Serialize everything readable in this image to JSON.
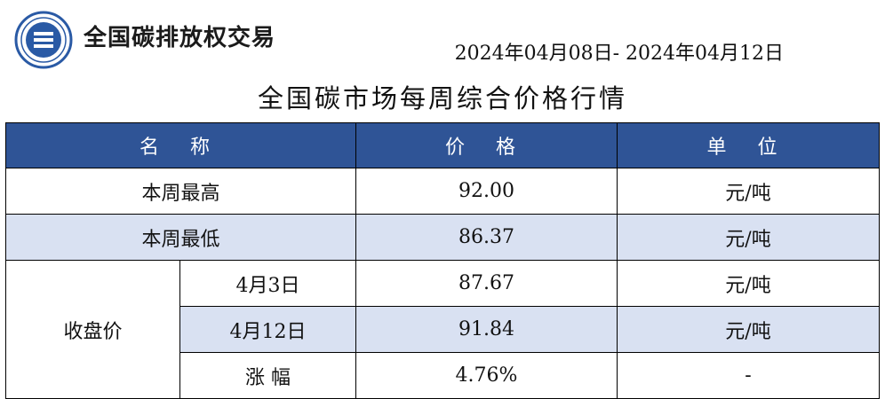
{
  "header": {
    "brand": "全国碳排放权交易",
    "date_range": "2024年04月08日- 2024年04月12日",
    "title": "全国碳市场每周综合价格行情"
  },
  "colors": {
    "header_bg": "#2f5496",
    "shade_bg": "#d9e1f2",
    "logo_blue": "#2a5aa5"
  },
  "table": {
    "columns": [
      "名 称",
      "价 格",
      "单 位"
    ],
    "rows": [
      {
        "name": "本周最高",
        "price": "92.00",
        "unit": "元/吨"
      },
      {
        "name": "本周最低",
        "price": "86.37",
        "unit": "元/吨"
      }
    ],
    "close": {
      "label": "收盘价",
      "rows": [
        {
          "sub": "4月3日",
          "price": "87.67",
          "unit": "元/吨"
        },
        {
          "sub": "4月12日",
          "price": "91.84",
          "unit": "元/吨"
        },
        {
          "sub": "涨 幅",
          "price": "4.76%",
          "unit": "-"
        }
      ]
    }
  }
}
